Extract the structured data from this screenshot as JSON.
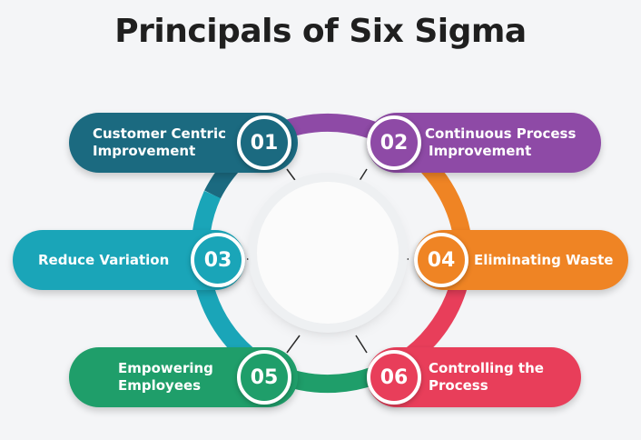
{
  "title": "Principals of Six Sigma",
  "items": [
    {
      "num": "01",
      "label_line1": "Customer Centric",
      "label_line2": "Improvement",
      "color": "#1b6a80"
    },
    {
      "num": "02",
      "label_line1": "Continuous Process",
      "label_line2": "Improvement",
      "color": "#8e4aa6"
    },
    {
      "num": "03",
      "label_line1": "Reduce Variation",
      "label_line2": "",
      "color": "#1aa5b8"
    },
    {
      "num": "04",
      "label_line1": "Eliminating Waste",
      "label_line2": "",
      "color": "#ef8424"
    },
    {
      "num": "05",
      "label_line1": "Empowering",
      "label_line2": "Employees",
      "color": "#1f9e6a"
    },
    {
      "num": "06",
      "label_line1": "Controlling the",
      "label_line2": "Process",
      "color": "#e83e5a"
    }
  ]
}
